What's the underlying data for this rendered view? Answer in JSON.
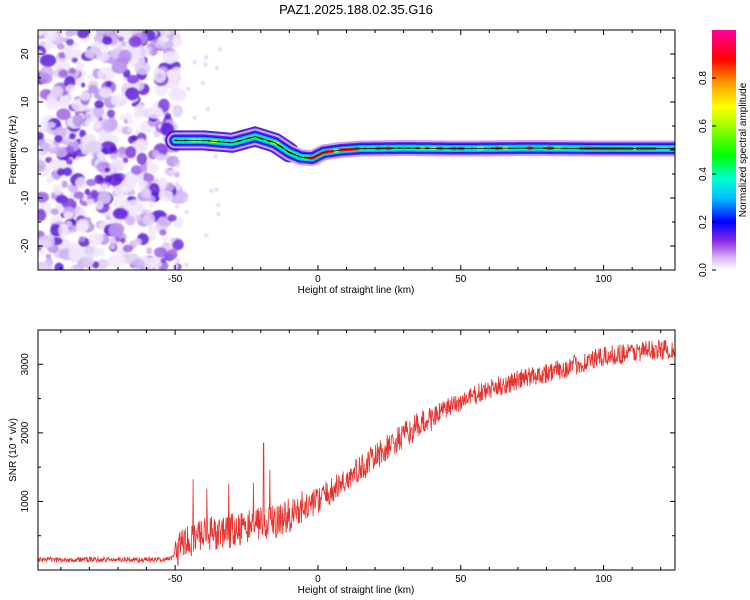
{
  "title": "PAZ1.2025.188.02.35.G16",
  "chart_data": [
    {
      "type": "heatmap",
      "xlabel": "Height of straight line (km)",
      "ylabel": "Frequency (Hz)",
      "xlim": [
        -98,
        125
      ],
      "ylim": [
        -25,
        25
      ],
      "xticks": [
        -50,
        0,
        50,
        100
      ],
      "yticks": [
        -20,
        -10,
        0,
        10,
        20
      ],
      "colorbar": {
        "label": "Normalized spectral amplitude",
        "ticks": [
          "0.0",
          "0.2",
          "0.4",
          "0.6",
          "0.8"
        ],
        "range": [
          0,
          1
        ]
      },
      "ridge": {
        "x": [
          -50,
          -40,
          -30,
          -22,
          -15,
          -10,
          -6,
          -2,
          2,
          8,
          15,
          30,
          50,
          75,
          100,
          125
        ],
        "y": [
          2,
          2,
          1.5,
          2.8,
          1.5,
          -0.5,
          -1.5,
          -1.7,
          -0.5,
          0,
          0.3,
          0.4,
          0.3,
          0.4,
          0.3,
          0.3
        ]
      },
      "noise_region": [
        -98,
        -50
      ]
    },
    {
      "type": "line",
      "xlabel": "Height of straight line (km)",
      "ylabel": "SNR (10 * v/v)",
      "xlim": [
        -98,
        125
      ],
      "ylim": [
        0,
        3500
      ],
      "xticks": [
        -50,
        0,
        50,
        100
      ],
      "yticks": [
        1000,
        2000,
        3000
      ],
      "series": [
        {
          "color": "#e8322e",
          "trend": {
            "x": [
              -98,
              -52,
              -50,
              -45,
              -35,
              -25,
              -15,
              -5,
              5,
              15,
              25,
              35,
              45,
              55,
              65,
              75,
              85,
              95,
              105,
              115,
              125
            ],
            "y": [
              150,
              150,
              250,
              450,
              550,
              620,
              720,
              900,
              1150,
              1480,
              1800,
              2100,
              2350,
              2550,
              2700,
              2830,
              2920,
              3050,
              3150,
              3200,
              3230
            ]
          }
        }
      ]
    }
  ]
}
